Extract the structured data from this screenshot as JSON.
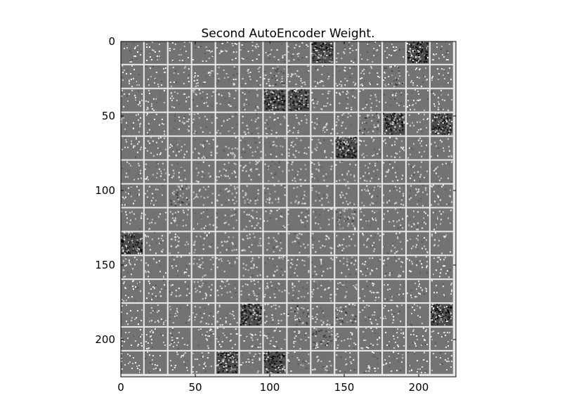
{
  "chart_data": {
    "type": "heatmap",
    "title": "Second AutoEncoder Weight.",
    "xlabel": "",
    "ylabel": "",
    "colormap": "gray",
    "extent_x": [
      0,
      225
    ],
    "extent_y": [
      225,
      0
    ],
    "x_ticks": [
      0,
      50,
      100,
      150,
      200
    ],
    "y_ticks": [
      0,
      50,
      100,
      150,
      200
    ],
    "tiles": {
      "rows": 14,
      "cols": 14,
      "tile_size": 15,
      "separator": 1
    },
    "high_variance_tiles": [
      [
        0,
        8
      ],
      [
        0,
        12
      ],
      [
        2,
        6
      ],
      [
        2,
        7
      ],
      [
        3,
        11
      ],
      [
        3,
        13
      ],
      [
        4,
        9
      ],
      [
        8,
        0
      ],
      [
        11,
        5
      ],
      [
        11,
        13
      ],
      [
        13,
        4
      ],
      [
        13,
        6
      ]
    ],
    "medium_variance_tiles": [
      [
        1,
        11
      ],
      [
        3,
        10
      ],
      [
        7,
        9
      ],
      [
        11,
        7
      ],
      [
        11,
        9
      ],
      [
        12,
        8
      ],
      [
        1,
        6
      ],
      [
        6,
        2
      ]
    ],
    "colors": {
      "background_gray": "#737373",
      "separator": "#e6e6e6",
      "axis": "#000000"
    }
  }
}
